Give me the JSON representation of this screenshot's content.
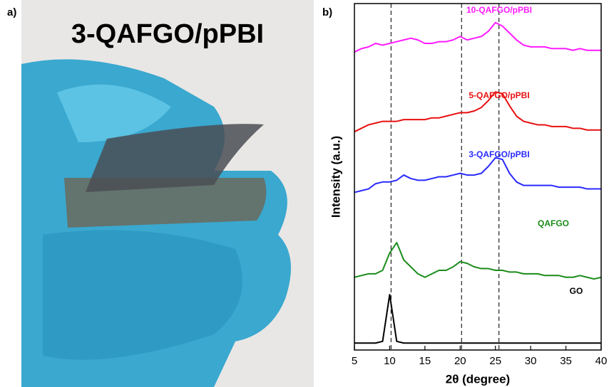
{
  "panels": {
    "a": {
      "label": "a)",
      "title": "3-QAFGO/pPBI"
    }
  },
  "chart_data": {
    "type": "line",
    "label": "b)",
    "x_label": "2θ (degree)",
    "y_label": "Intensity (a.u.)",
    "x": [
      5,
      6,
      7,
      8,
      9,
      10,
      11,
      12,
      13,
      14,
      15,
      16,
      17,
      18,
      19,
      20,
      21,
      22,
      23,
      24,
      25,
      26,
      27,
      28,
      29,
      30,
      31,
      32,
      33,
      34,
      35,
      36,
      37,
      38,
      39,
      40
    ],
    "xlim": [
      5,
      40
    ],
    "xticks": [
      5,
      10,
      15,
      20,
      25,
      30,
      35,
      40
    ],
    "ylim": [
      0,
      100
    ],
    "reference_lines": [
      10.2,
      20.2,
      25.5
    ],
    "series": [
      {
        "name": "GO",
        "color": "#000000",
        "values": [
          2,
          2,
          2,
          2,
          2.5,
          16,
          2.5,
          2,
          2,
          2,
          2,
          2,
          2,
          2,
          2,
          2,
          2,
          2,
          2,
          2,
          2,
          2,
          2,
          2,
          2,
          2,
          2,
          2,
          2,
          2,
          2,
          2,
          2,
          2,
          2,
          2
        ]
      },
      {
        "name": "QAFGO",
        "color": "#1a8c1a",
        "values": [
          21,
          21.5,
          22,
          22,
          23,
          28,
          31,
          26,
          24,
          22,
          21,
          22,
          23,
          23,
          24,
          25.5,
          25,
          24,
          23.5,
          23.5,
          23,
          23,
          22.5,
          22.5,
          22,
          22,
          22,
          21.5,
          21.5,
          21.5,
          21,
          21,
          21.5,
          21,
          20.5,
          21
        ]
      },
      {
        "name": "3-QAFGO/pPBI",
        "color": "#2a2aff",
        "values": [
          45.5,
          46,
          46.5,
          48,
          48.5,
          48.5,
          49,
          50.5,
          49.5,
          49,
          49,
          49.5,
          50,
          50,
          50.5,
          51,
          50.5,
          50.5,
          51,
          53,
          55.5,
          55,
          51,
          48.5,
          47.5,
          47.5,
          47.5,
          47.5,
          47.5,
          47,
          47,
          47,
          47,
          46.5,
          46.5,
          46.5
        ]
      },
      {
        "name": "5-QAFGO/pPBI",
        "color": "#e81010",
        "values": [
          63,
          64,
          65,
          65.5,
          66,
          66,
          66,
          66.5,
          66.5,
          66.5,
          66.5,
          67,
          67,
          67.5,
          68,
          68.5,
          68.5,
          69,
          70,
          72,
          74.5,
          74,
          70.5,
          67.5,
          66,
          65.5,
          65,
          65,
          64.5,
          64.5,
          64.5,
          64,
          64,
          63.5,
          63.5,
          63.5
        ]
      },
      {
        "name": "10-QAFGO/pPBI",
        "color": "#ff1aff",
        "values": [
          86,
          87,
          87.5,
          88.5,
          88,
          88.5,
          89,
          89.5,
          90,
          89.5,
          88.5,
          88.5,
          89,
          89,
          89.5,
          90.5,
          89.5,
          90,
          90.5,
          92,
          94.5,
          93.5,
          91.5,
          89.5,
          88,
          87.5,
          87.5,
          87.5,
          87,
          87,
          87,
          86.5,
          87,
          86.5,
          86.5,
          86.5
        ]
      }
    ]
  }
}
